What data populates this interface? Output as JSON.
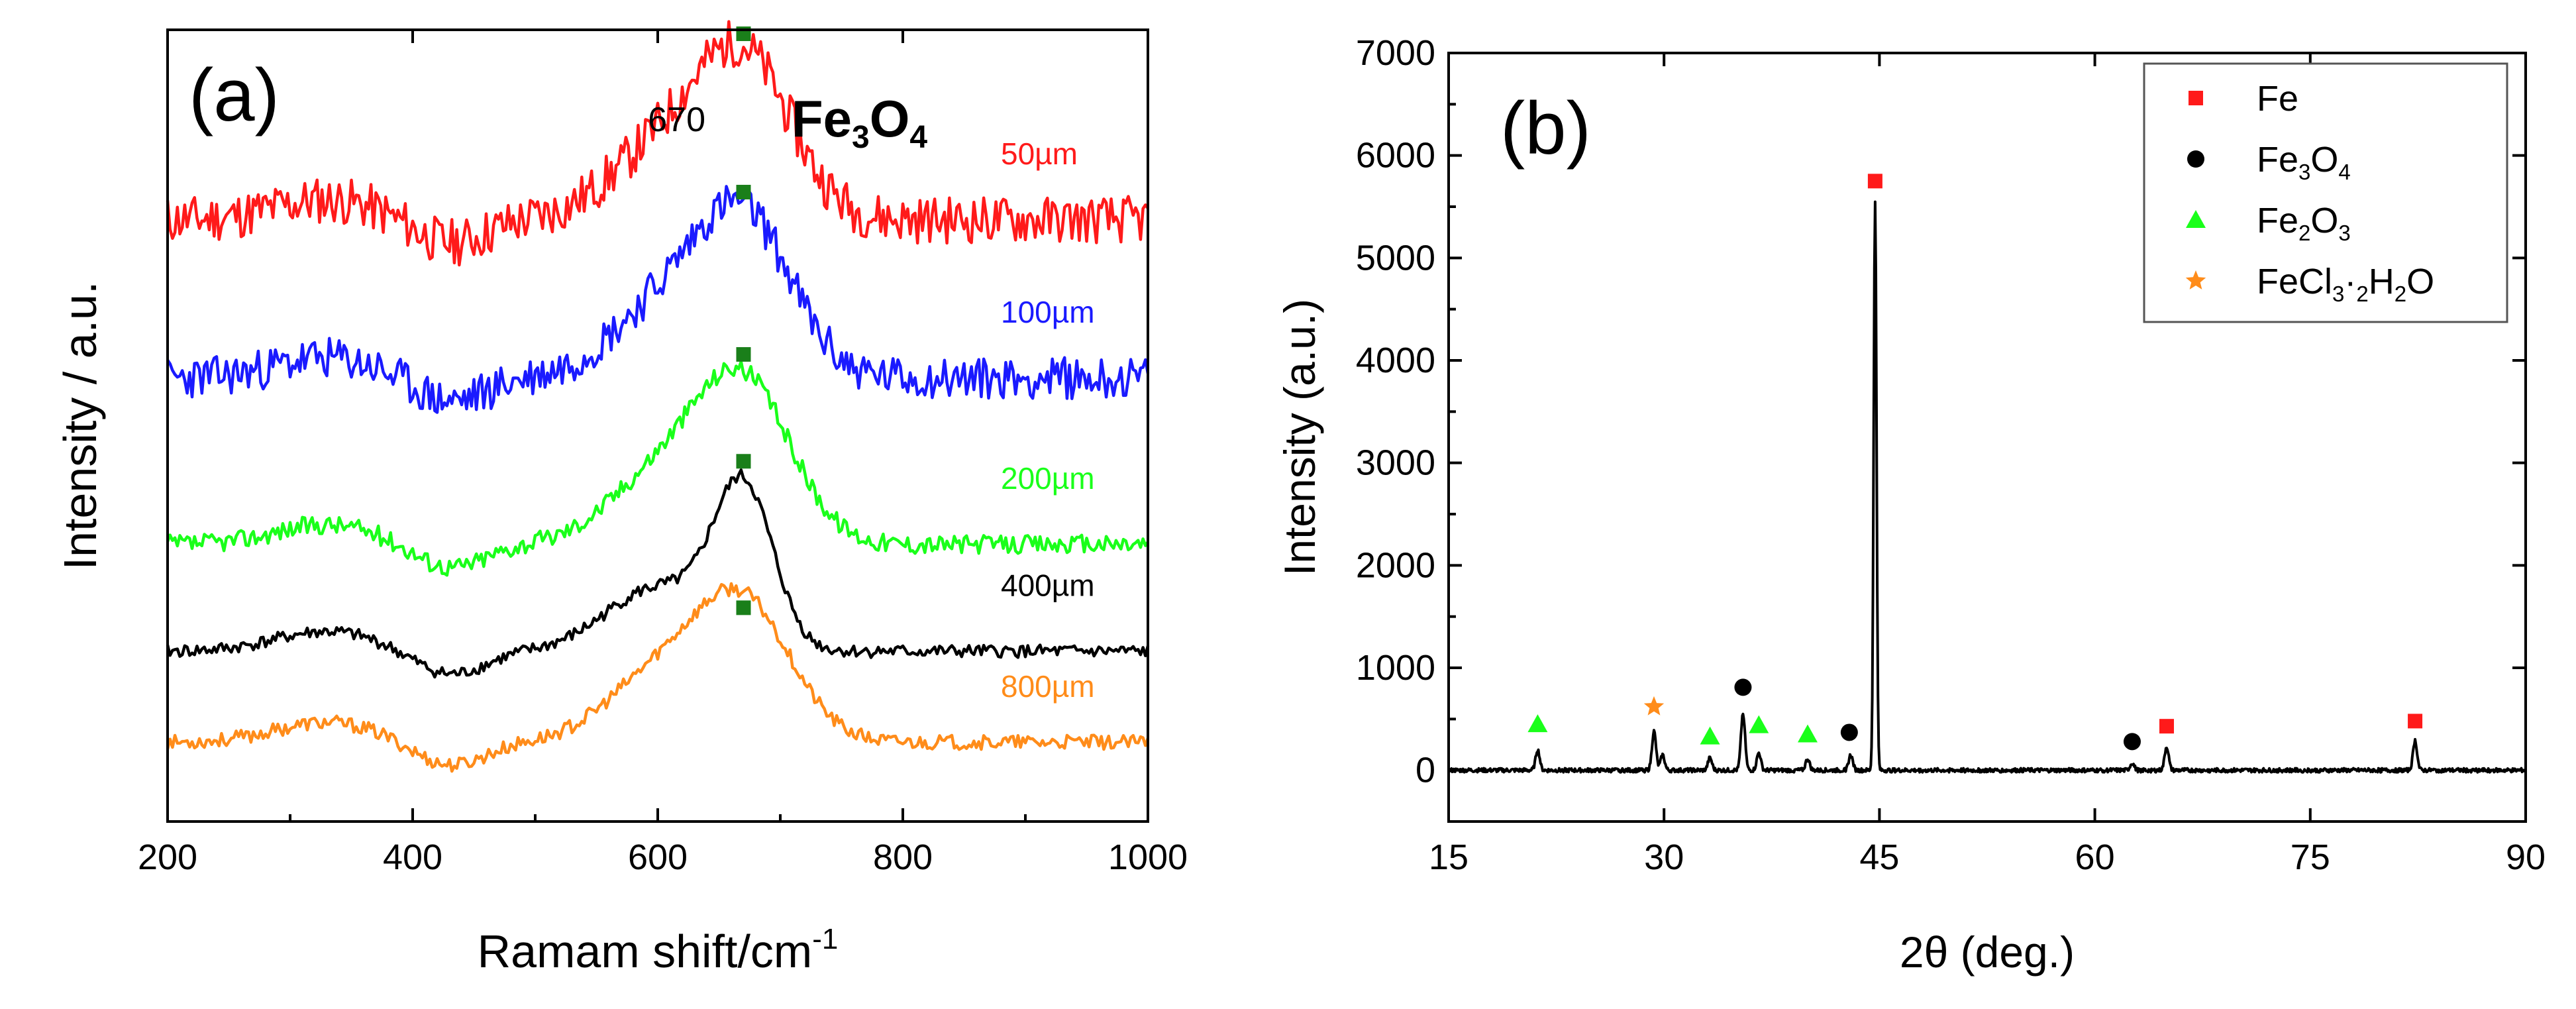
{
  "chart_data": [
    {
      "type": "line",
      "panel_label": "(a)",
      "xlabel": "Ramam shift/cm",
      "xlabel_sup": "-1",
      "ylabel": "Intensity / a.u.",
      "xlim": [
        200,
        1000
      ],
      "xticks": [
        "200",
        "400",
        "600",
        "800",
        "1000"
      ],
      "yticks": [],
      "annotation": {
        "value": "670",
        "compound": "Fe3O4",
        "marker_x": 670,
        "marker_color": "#1a7f1a"
      },
      "series": [
        {
          "name": "50µm",
          "color": "#ff1a1a",
          "baseline": 0.76,
          "peak_height": 0.2,
          "marker_level": 0.995,
          "label_x": 880,
          "label_dy": 0.02,
          "sharpness": 1.0,
          "noise": 0.03,
          "seed": 11
        },
        {
          "name": "100µm",
          "color": "#1a1aff",
          "baseline": 0.56,
          "peak_height": 0.2,
          "marker_level": 0.795,
          "label_x": 880,
          "label_dy": 0.02,
          "sharpness": 1.0,
          "noise": 0.026,
          "seed": 23
        },
        {
          "name": "200µm",
          "color": "#1aff1a",
          "baseline": 0.35,
          "peak_height": 0.2,
          "marker_level": 0.59,
          "label_x": 880,
          "label_dy": 0.02,
          "sharpness": 1.0,
          "noise": 0.012,
          "seed": 37
        },
        {
          "name": "400µm",
          "color": "#000000",
          "baseline": 0.215,
          "peak_height": 0.2,
          "marker_level": 0.455,
          "label_x": 880,
          "label_dy": 0.02,
          "sharpness": 1.6,
          "noise": 0.008,
          "seed": 41
        },
        {
          "name": "800µm",
          "color": "#ff8c1a",
          "baseline": 0.1,
          "peak_height": 0.17,
          "marker_level": 0.27,
          "label_x": 880,
          "label_dy": 0.015,
          "sharpness": 1.0,
          "noise": 0.009,
          "seed": 53
        }
      ]
    },
    {
      "type": "line",
      "panel_label": "(b)",
      "xlabel": "2θ (deg.)",
      "ylabel": "Intensity (a.u.)",
      "xlim": [
        15,
        90
      ],
      "ylim": [
        -500,
        7000
      ],
      "xticks": [
        15,
        30,
        45,
        60,
        75,
        90
      ],
      "yticks": [
        0,
        1000,
        2000,
        3000,
        4000,
        5000,
        6000,
        7000
      ],
      "series_color": "#000000",
      "peaks": [
        {
          "x": 21.2,
          "y": 200
        },
        {
          "x": 29.3,
          "y": 380
        },
        {
          "x": 29.9,
          "y": 150
        },
        {
          "x": 33.2,
          "y": 120
        },
        {
          "x": 35.5,
          "y": 560
        },
        {
          "x": 36.6,
          "y": 170
        },
        {
          "x": 40.0,
          "y": 110
        },
        {
          "x": 43.0,
          "y": 150
        },
        {
          "x": 44.7,
          "y": 5550
        },
        {
          "x": 62.6,
          "y": 70
        },
        {
          "x": 65.0,
          "y": 230
        },
        {
          "x": 82.3,
          "y": 290
        }
      ],
      "markers": [
        {
          "phase": "Fe",
          "shape": "square",
          "x": 44.7,
          "y": 5750
        },
        {
          "phase": "Fe",
          "shape": "square",
          "x": 65.0,
          "y": 430
        },
        {
          "phase": "Fe",
          "shape": "square",
          "x": 82.3,
          "y": 480
        },
        {
          "phase": "Fe3O4",
          "shape": "circle",
          "x": 35.5,
          "y": 810
        },
        {
          "phase": "Fe3O4",
          "shape": "circle",
          "x": 42.9,
          "y": 370
        },
        {
          "phase": "Fe3O4",
          "shape": "circle",
          "x": 62.6,
          "y": 280
        },
        {
          "phase": "Fe2O3",
          "shape": "triangle",
          "x": 21.2,
          "y": 450
        },
        {
          "phase": "Fe2O3",
          "shape": "triangle",
          "x": 33.2,
          "y": 330
        },
        {
          "phase": "Fe2O3",
          "shape": "triangle",
          "x": 36.6,
          "y": 440
        },
        {
          "phase": "Fe2O3",
          "shape": "triangle",
          "x": 40.0,
          "y": 350
        },
        {
          "phase": "FeCl3·2H2O",
          "shape": "star",
          "x": 29.3,
          "y": 620
        }
      ],
      "legend": {
        "position": "top-right",
        "entries": [
          {
            "label": "Fe",
            "shape": "square",
            "color": "#ff1a1a"
          },
          {
            "label": "Fe3O4",
            "shape": "circle",
            "color": "#000000"
          },
          {
            "label": "Fe2O3",
            "shape": "triangle",
            "color": "#1aff1a"
          },
          {
            "label": "FeCl3·2H2O",
            "shape": "star",
            "color": "#ff8c1a"
          }
        ]
      }
    }
  ]
}
